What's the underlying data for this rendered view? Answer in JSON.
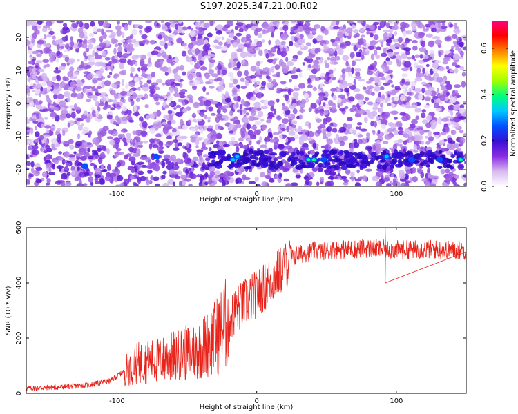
{
  "title": "S197.2025.347.21.00.R02",
  "chart_data": [
    {
      "type": "heatmap",
      "xlabel": "Height of straight line (km)",
      "ylabel": "Frequency (Hz)",
      "xlim": [
        -165,
        150
      ],
      "ylim": [
        -25,
        25
      ],
      "xticks": [
        -100,
        0,
        100
      ],
      "yticks": [
        -20,
        -10,
        0,
        10,
        20
      ],
      "colorbar": {
        "label": "Normalized spectral amplitude",
        "range": [
          0,
          0.72
        ],
        "ticks": [
          0.0,
          0.2,
          0.4,
          0.6
        ],
        "colors": [
          "#ffffff",
          "#d8b8f0",
          "#8a2be2",
          "#3a10d8",
          "#0050ff",
          "#00c8ff",
          "#00ff80",
          "#a0ff00",
          "#ffff00",
          "#ff8000",
          "#ff0000",
          "#ff0080"
        ]
      },
      "feature_band": {
        "frequency": -17,
        "from_height": -35,
        "to_height": 150
      },
      "hot_spots": [
        {
          "x": -123,
          "y": -19,
          "v": 0.18
        },
        {
          "x": -72,
          "y": -16,
          "v": 0.22
        },
        {
          "x": -17,
          "y": -17,
          "v": 0.32
        },
        {
          "x": -14,
          "y": -16,
          "v": 0.36
        },
        {
          "x": 37,
          "y": -17,
          "v": 0.42
        },
        {
          "x": 41,
          "y": -17,
          "v": 0.48
        },
        {
          "x": 48,
          "y": -17,
          "v": 0.25
        },
        {
          "x": 93,
          "y": -16,
          "v": 0.38
        },
        {
          "x": 111,
          "y": -17,
          "v": 0.2
        },
        {
          "x": 131,
          "y": -17,
          "v": 0.22
        },
        {
          "x": 146,
          "y": -17,
          "v": 0.5
        }
      ]
    },
    {
      "type": "line",
      "xlabel": "Height of straight line (km)",
      "ylabel": "SNR (10 * v/v)",
      "xlim": [
        -165,
        150
      ],
      "ylim": [
        0,
        600
      ],
      "xticks": [
        -100,
        0,
        100
      ],
      "yticks": [
        0,
        200,
        400,
        600
      ],
      "color": "#e8231a",
      "profile": [
        [
          -165,
          18
        ],
        [
          -140,
          22
        ],
        [
          -120,
          30
        ],
        [
          -105,
          45
        ],
        [
          -95,
          80
        ],
        [
          -85,
          110
        ],
        [
          -70,
          120
        ],
        [
          -55,
          140
        ],
        [
          -40,
          160
        ],
        [
          -30,
          200
        ],
        [
          -22,
          250
        ],
        [
          -15,
          300
        ],
        [
          -8,
          330
        ],
        [
          0,
          360
        ],
        [
          5,
          380
        ],
        [
          12,
          420
        ],
        [
          20,
          460
        ],
        [
          28,
          500
        ],
        [
          40,
          515
        ],
        [
          60,
          520
        ],
        [
          80,
          525
        ],
        [
          100,
          520
        ],
        [
          120,
          522
        ],
        [
          150,
          518
        ]
      ],
      "notable_points": [
        {
          "x": 92,
          "y": 400
        },
        {
          "x": 92,
          "y": 598
        }
      ]
    }
  ]
}
